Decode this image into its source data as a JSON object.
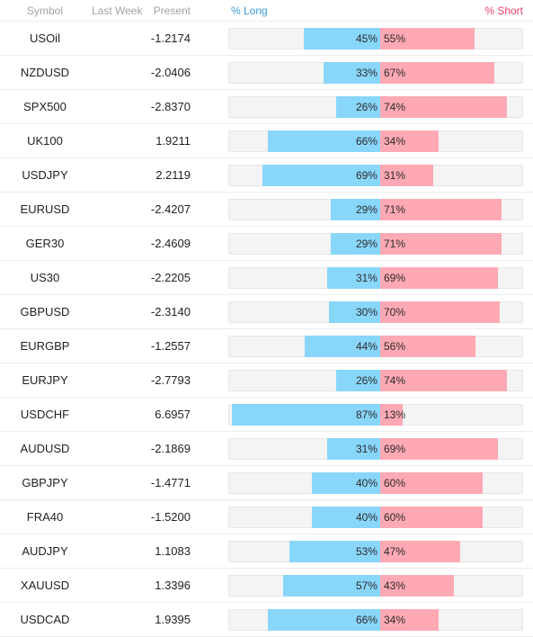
{
  "header": {
    "symbol": "Symbol",
    "last_week": "Last Week",
    "present": "Present",
    "long": "% Long",
    "short": "% Short"
  },
  "colors": {
    "long_bar": "#89d6fb",
    "short_bar": "#ffa9b4",
    "long_header": "#3a9bd9",
    "short_header": "#e2426a"
  },
  "rows": [
    {
      "symbol": "USOil",
      "last_week": "",
      "present": "-1.2174",
      "long": 45,
      "short": 55,
      "long_label": "45%",
      "short_label": "55%"
    },
    {
      "symbol": "NZDUSD",
      "last_week": "",
      "present": "-2.0406",
      "long": 33,
      "short": 67,
      "long_label": "33%",
      "short_label": "67%"
    },
    {
      "symbol": "SPX500",
      "last_week": "",
      "present": "-2.8370",
      "long": 26,
      "short": 74,
      "long_label": "26%",
      "short_label": "74%"
    },
    {
      "symbol": "UK100",
      "last_week": "",
      "present": "1.9211",
      "long": 66,
      "short": 34,
      "long_label": "66%",
      "short_label": "34%"
    },
    {
      "symbol": "USDJPY",
      "last_week": "",
      "present": "2.2119",
      "long": 69,
      "short": 31,
      "long_label": "69%",
      "short_label": "31%"
    },
    {
      "symbol": "EURUSD",
      "last_week": "",
      "present": "-2.4207",
      "long": 29,
      "short": 71,
      "long_label": "29%",
      "short_label": "71%"
    },
    {
      "symbol": "GER30",
      "last_week": "",
      "present": "-2.4609",
      "long": 29,
      "short": 71,
      "long_label": "29%",
      "short_label": "71%"
    },
    {
      "symbol": "US30",
      "last_week": "",
      "present": "-2.2205",
      "long": 31,
      "short": 69,
      "long_label": "31%",
      "short_label": "69%"
    },
    {
      "symbol": "GBPUSD",
      "last_week": "",
      "present": "-2.3140",
      "long": 30,
      "short": 70,
      "long_label": "30%",
      "short_label": "70%"
    },
    {
      "symbol": "EURGBP",
      "last_week": "",
      "present": "-1.2557",
      "long": 44,
      "short": 56,
      "long_label": "44%",
      "short_label": "56%"
    },
    {
      "symbol": "EURJPY",
      "last_week": "",
      "present": "-2.7793",
      "long": 26,
      "short": 74,
      "long_label": "26%",
      "short_label": "74%"
    },
    {
      "symbol": "USDCHF",
      "last_week": "",
      "present": "6.6957",
      "long": 87,
      "short": 13,
      "long_label": "87%",
      "short_label": "13%"
    },
    {
      "symbol": "AUDUSD",
      "last_week": "",
      "present": "-2.1869",
      "long": 31,
      "short": 69,
      "long_label": "31%",
      "short_label": "69%"
    },
    {
      "symbol": "GBPJPY",
      "last_week": "",
      "present": "-1.4771",
      "long": 40,
      "short": 60,
      "long_label": "40%",
      "short_label": "60%"
    },
    {
      "symbol": "FRA40",
      "last_week": "",
      "present": "-1.5200",
      "long": 40,
      "short": 60,
      "long_label": "40%",
      "short_label": "60%"
    },
    {
      "symbol": "AUDJPY",
      "last_week": "",
      "present": "1.1083",
      "long": 53,
      "short": 47,
      "long_label": "53%",
      "short_label": "47%"
    },
    {
      "symbol": "XAUUSD",
      "last_week": "",
      "present": "1.3396",
      "long": 57,
      "short": 43,
      "long_label": "57%",
      "short_label": "43%"
    },
    {
      "symbol": "USDCAD",
      "last_week": "",
      "present": "1.9395",
      "long": 66,
      "short": 34,
      "long_label": "66%",
      "short_label": "34%"
    }
  ]
}
